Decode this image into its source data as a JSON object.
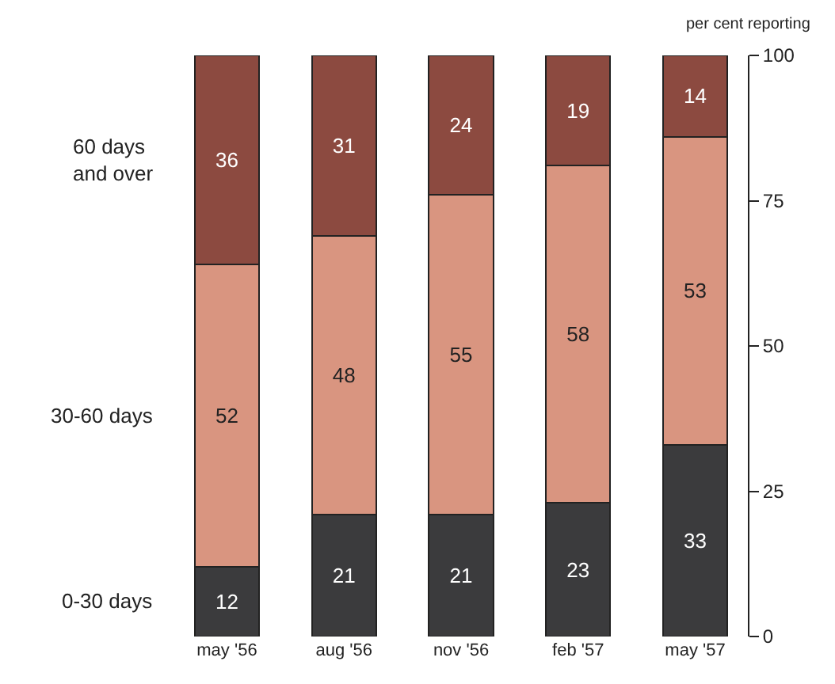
{
  "chart_data": {
    "type": "bar",
    "stacked": true,
    "data_labels": true,
    "legend": false,
    "ylabel": "per cent reporting",
    "ylim": [
      0,
      100
    ],
    "yticks": [
      0,
      25,
      50,
      75,
      100
    ],
    "categories": [
      "may '56",
      "aug '56",
      "nov '56",
      "feb '57",
      "may '57"
    ],
    "series": [
      {
        "name": "0-30 days",
        "color": "#3b3b3d",
        "values": [
          12,
          21,
          21,
          23,
          33
        ]
      },
      {
        "name": "30-60 days",
        "color": "#d99580",
        "values": [
          52,
          48,
          55,
          58,
          53
        ]
      },
      {
        "name": "60 days\nand over",
        "color": "#8c4a40",
        "values": [
          36,
          31,
          24,
          19,
          14
        ]
      }
    ]
  }
}
